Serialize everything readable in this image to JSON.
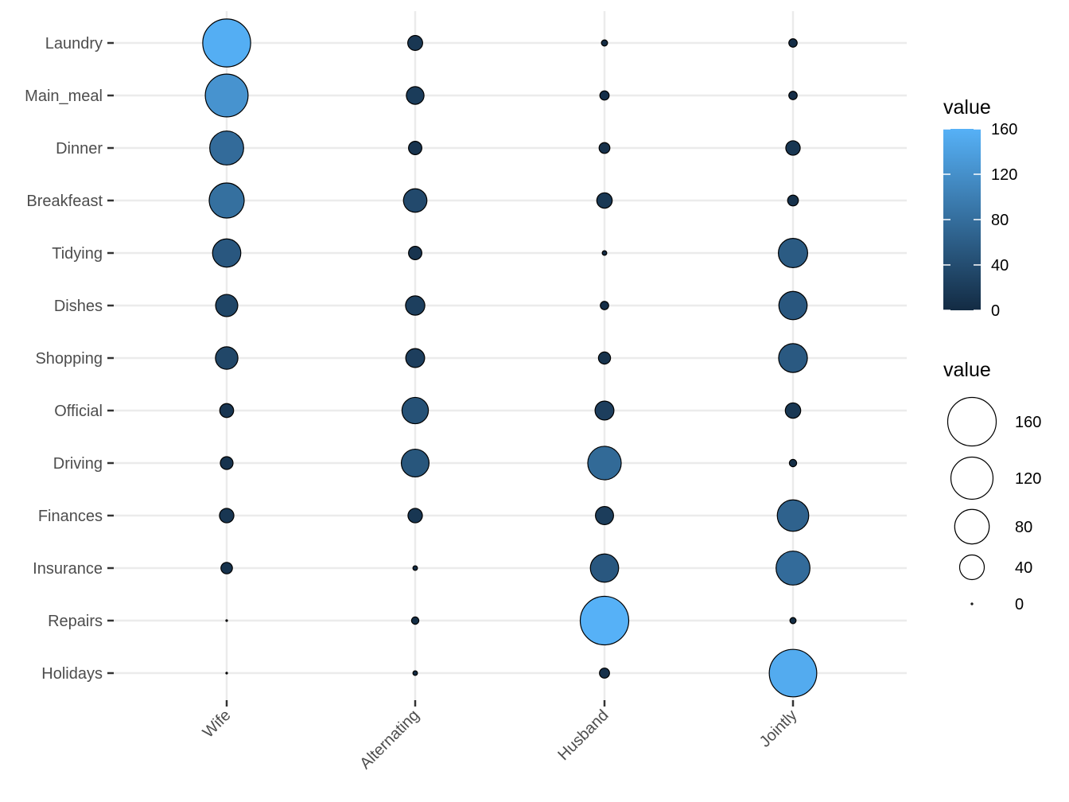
{
  "chart_data": {
    "type": "balloon",
    "title": "",
    "xlabel": "",
    "ylabel": "",
    "x_categories": [
      "Wife",
      "Alternating",
      "Husband",
      "Jointly"
    ],
    "y_categories": [
      "Laundry",
      "Main_meal",
      "Dinner",
      "Breakfeast",
      "Tidying",
      "Dishes",
      "Shopping",
      "Official",
      "Driving",
      "Finances",
      "Insurance",
      "Repairs",
      "Holidays"
    ],
    "values": [
      [
        156,
        14,
        2,
        4
      ],
      [
        124,
        20,
        5,
        4
      ],
      [
        77,
        11,
        7,
        13
      ],
      [
        82,
        36,
        15,
        7
      ],
      [
        53,
        11,
        1,
        57
      ],
      [
        32,
        24,
        4,
        53
      ],
      [
        33,
        23,
        9,
        55
      ],
      [
        12,
        46,
        23,
        15
      ],
      [
        10,
        51,
        75,
        3
      ],
      [
        13,
        13,
        21,
        66
      ],
      [
        8,
        1,
        53,
        77
      ],
      [
        0,
        3,
        160,
        2
      ],
      [
        0,
        1,
        6,
        153
      ]
    ],
    "color_legend": {
      "title": "value",
      "ticks": [
        160,
        120,
        80,
        40,
        0
      ],
      "low_color": "#132B43",
      "high_color": "#56B1F7"
    },
    "size_legend": {
      "title": "value",
      "breaks": [
        160,
        120,
        80,
        40,
        0
      ]
    },
    "grid": true,
    "legend_position": "right",
    "point_outline_color": "#000000"
  }
}
